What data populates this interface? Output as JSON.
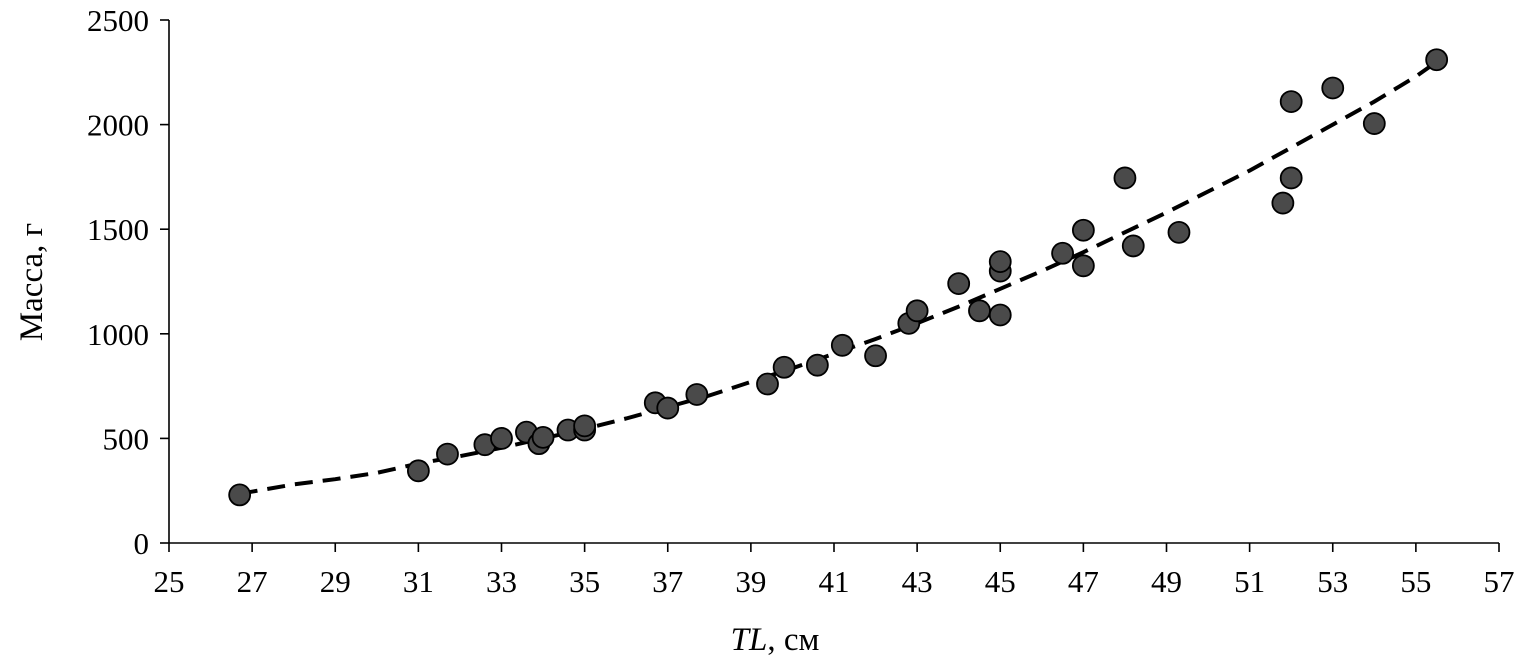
{
  "chart_data": {
    "type": "scatter",
    "xlabel_italic": "TL",
    "xlabel_rest": ", см",
    "ylabel": "Масса, г",
    "xlim": [
      25,
      57
    ],
    "ylim": [
      0,
      2500
    ],
    "xticks": [
      25,
      27,
      29,
      31,
      33,
      35,
      37,
      39,
      41,
      43,
      45,
      47,
      49,
      51,
      53,
      55,
      57
    ],
    "yticks": [
      0,
      500,
      1000,
      1500,
      2000,
      2500
    ],
    "grid": false,
    "points": [
      {
        "x": 26.7,
        "y": 230
      },
      {
        "x": 31.0,
        "y": 345
      },
      {
        "x": 31.7,
        "y": 425
      },
      {
        "x": 32.6,
        "y": 470
      },
      {
        "x": 33.0,
        "y": 500
      },
      {
        "x": 33.6,
        "y": 530
      },
      {
        "x": 33.9,
        "y": 475
      },
      {
        "x": 34.0,
        "y": 505
      },
      {
        "x": 34.6,
        "y": 540
      },
      {
        "x": 35.0,
        "y": 540
      },
      {
        "x": 35.0,
        "y": 560
      },
      {
        "x": 36.7,
        "y": 670
      },
      {
        "x": 37.0,
        "y": 645
      },
      {
        "x": 37.7,
        "y": 710
      },
      {
        "x": 39.4,
        "y": 760
      },
      {
        "x": 39.8,
        "y": 840
      },
      {
        "x": 40.6,
        "y": 850
      },
      {
        "x": 41.2,
        "y": 945
      },
      {
        "x": 42.0,
        "y": 895
      },
      {
        "x": 42.8,
        "y": 1050
      },
      {
        "x": 43.0,
        "y": 1110
      },
      {
        "x": 44.0,
        "y": 1240
      },
      {
        "x": 44.5,
        "y": 1110
      },
      {
        "x": 45.0,
        "y": 1090
      },
      {
        "x": 45.0,
        "y": 1300
      },
      {
        "x": 45.0,
        "y": 1345
      },
      {
        "x": 46.5,
        "y": 1385
      },
      {
        "x": 47.0,
        "y": 1325
      },
      {
        "x": 47.0,
        "y": 1495
      },
      {
        "x": 48.0,
        "y": 1745
      },
      {
        "x": 48.2,
        "y": 1420
      },
      {
        "x": 49.3,
        "y": 1485
      },
      {
        "x": 51.8,
        "y": 1625
      },
      {
        "x": 52.0,
        "y": 1745
      },
      {
        "x": 52.0,
        "y": 2110
      },
      {
        "x": 53.0,
        "y": 2175
      },
      {
        "x": 54.0,
        "y": 2005
      },
      {
        "x": 55.5,
        "y": 2310
      }
    ],
    "trendline": {
      "style": "dashed",
      "x": [
        26.7,
        28,
        29,
        30,
        31,
        32,
        33,
        34,
        35,
        36,
        37,
        38,
        39,
        40,
        41,
        42,
        43,
        44,
        45,
        46,
        47,
        48,
        49,
        50,
        51,
        52,
        53,
        54,
        55,
        55.5
      ],
      "y": [
        235,
        280,
        305,
        335,
        380,
        415,
        455,
        500,
        545,
        595,
        650,
        705,
        770,
        835,
        905,
        975,
        1050,
        1130,
        1215,
        1300,
        1390,
        1485,
        1580,
        1680,
        1780,
        1890,
        2000,
        2110,
        2230,
        2300
      ]
    }
  }
}
